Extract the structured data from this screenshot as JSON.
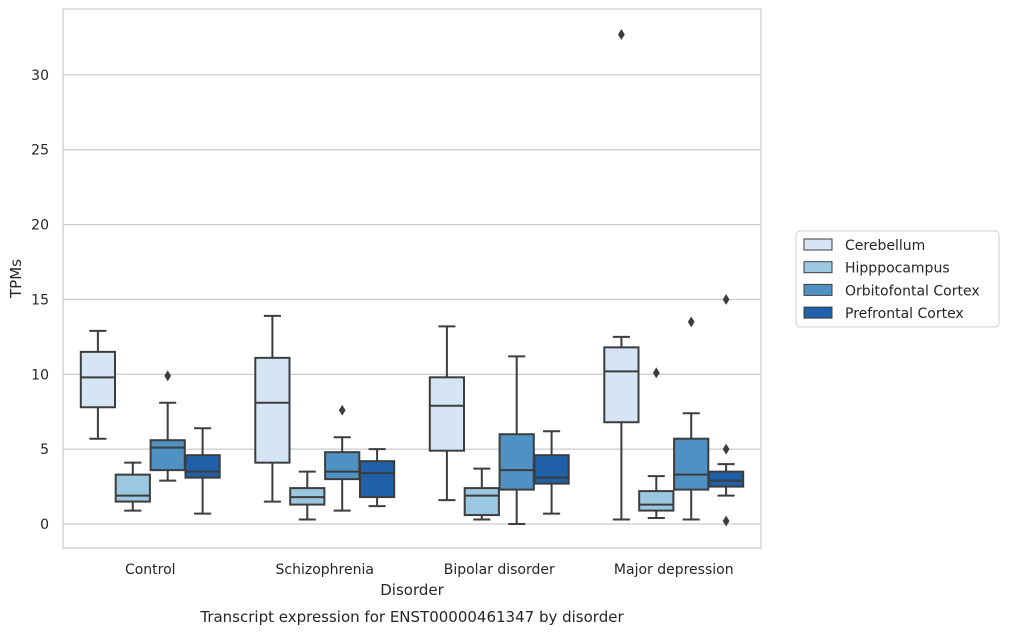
{
  "caption": "Transcript expression for ENST00000461347 by disorder",
  "chart_data": {
    "type": "box",
    "xlabel": "Disorder",
    "ylabel": "TPMs",
    "ylim": [
      -1.6,
      34.4
    ],
    "yticks": [
      0,
      5,
      10,
      15,
      20,
      25,
      30
    ],
    "grid": true,
    "legend_position": "right",
    "categories": [
      "Control",
      "Schizophrenia",
      "Bipolar disorder",
      "Major depression"
    ],
    "series": [
      {
        "name": "Cerebellum",
        "color": "#d6e5f4",
        "boxes": [
          {
            "whisker_low": 5.7,
            "q1": 7.8,
            "median": 9.8,
            "q3": 11.5,
            "whisker_high": 12.9,
            "outliers": []
          },
          {
            "whisker_low": 1.5,
            "q1": 4.1,
            "median": 8.1,
            "q3": 11.1,
            "whisker_high": 13.9,
            "outliers": []
          },
          {
            "whisker_low": 1.6,
            "q1": 4.9,
            "median": 7.9,
            "q3": 9.8,
            "whisker_high": 13.2,
            "outliers": []
          },
          {
            "whisker_low": 0.3,
            "q1": 6.8,
            "median": 10.2,
            "q3": 11.8,
            "whisker_high": 12.5,
            "outliers": [
              32.7
            ]
          }
        ]
      },
      {
        "name": "Hipppocampus",
        "color": "#9bc7e0",
        "boxes": [
          {
            "whisker_low": 0.9,
            "q1": 1.5,
            "median": 1.9,
            "q3": 3.3,
            "whisker_high": 4.1,
            "outliers": []
          },
          {
            "whisker_low": 0.3,
            "q1": 1.3,
            "median": 1.8,
            "q3": 2.4,
            "whisker_high": 3.5,
            "outliers": []
          },
          {
            "whisker_low": 0.3,
            "q1": 0.6,
            "median": 1.9,
            "q3": 2.4,
            "whisker_high": 3.7,
            "outliers": []
          },
          {
            "whisker_low": 0.4,
            "q1": 0.9,
            "median": 1.3,
            "q3": 2.2,
            "whisker_high": 3.2,
            "outliers": [
              10.1
            ]
          }
        ]
      },
      {
        "name": "Orbitofontal Cortex",
        "color": "#4f91c3",
        "boxes": [
          {
            "whisker_low": 2.9,
            "q1": 3.6,
            "median": 5.1,
            "q3": 5.6,
            "whisker_high": 8.1,
            "outliers": [
              9.9
            ]
          },
          {
            "whisker_low": 0.9,
            "q1": 3.0,
            "median": 3.5,
            "q3": 4.8,
            "whisker_high": 5.8,
            "outliers": [
              7.6
            ]
          },
          {
            "whisker_low": 0.0,
            "q1": 2.3,
            "median": 3.6,
            "q3": 6.0,
            "whisker_high": 11.2,
            "outliers": []
          },
          {
            "whisker_low": 0.3,
            "q1": 2.3,
            "median": 3.3,
            "q3": 5.7,
            "whisker_high": 7.4,
            "outliers": [
              13.5
            ]
          }
        ]
      },
      {
        "name": "Prefrontal Cortex",
        "color": "#2060a8",
        "boxes": [
          {
            "whisker_low": 0.7,
            "q1": 3.1,
            "median": 3.5,
            "q3": 4.6,
            "whisker_high": 6.4,
            "outliers": []
          },
          {
            "whisker_low": 1.2,
            "q1": 1.8,
            "median": 3.4,
            "q3": 4.2,
            "whisker_high": 5.0,
            "outliers": []
          },
          {
            "whisker_low": 0.7,
            "q1": 2.7,
            "median": 3.1,
            "q3": 4.6,
            "whisker_high": 6.2,
            "outliers": []
          },
          {
            "whisker_low": 1.9,
            "q1": 2.5,
            "median": 2.9,
            "q3": 3.5,
            "whisker_high": 4.0,
            "outliers": [
              5.0,
              0.2,
              15.0
            ]
          }
        ]
      }
    ]
  }
}
